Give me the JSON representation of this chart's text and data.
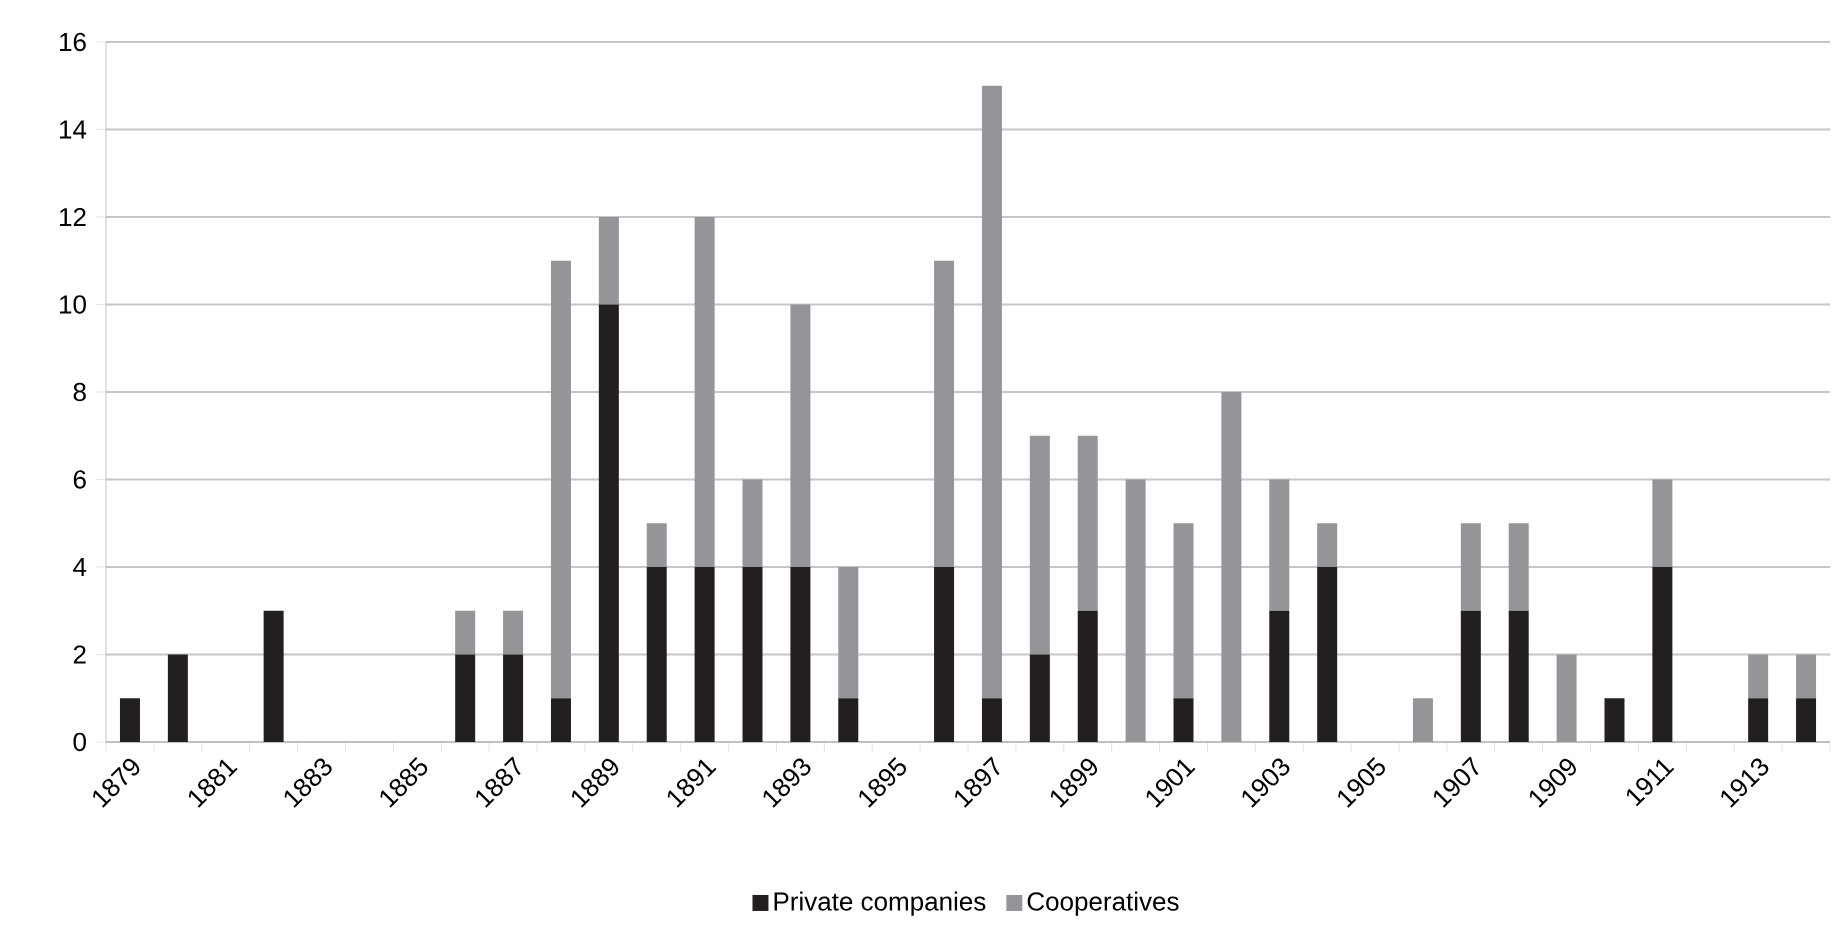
{
  "chart_data": {
    "type": "bar",
    "stacked": true,
    "categories": [
      "1879",
      null,
      "1881",
      null,
      "1883",
      null,
      "1885",
      null,
      "1887",
      null,
      "1889",
      null,
      "1891",
      null,
      "1893",
      null,
      "1895",
      null,
      "1897",
      null,
      "1899",
      null,
      "1901",
      null,
      "1903",
      null,
      "1905",
      null,
      "1907",
      null,
      "1909",
      null,
      "1911",
      null,
      "1913",
      null
    ],
    "series": [
      {
        "name": "Private companies",
        "color": "#231f20",
        "values": [
          1,
          2,
          0,
          3,
          0,
          0,
          0,
          2,
          2,
          1,
          10,
          4,
          4,
          4,
          4,
          1,
          0,
          4,
          1,
          2,
          3,
          0,
          1,
          0,
          3,
          4,
          0,
          0,
          3,
          3,
          0,
          1,
          4,
          0,
          1,
          1
        ]
      },
      {
        "name": "Cooperatives",
        "color": "#939598",
        "values": [
          0,
          0,
          0,
          0,
          0,
          0,
          0,
          1,
          1,
          10,
          2,
          1,
          8,
          2,
          6,
          3,
          0,
          7,
          14,
          5,
          4,
          6,
          4,
          8,
          3,
          1,
          0,
          1,
          2,
          2,
          2,
          0,
          2,
          0,
          1,
          1
        ]
      }
    ],
    "ylim": [
      0,
      16
    ],
    "yticks": [
      0,
      2,
      4,
      6,
      8,
      10,
      12,
      14,
      16
    ],
    "grid": "y",
    "legend": "bottom"
  }
}
